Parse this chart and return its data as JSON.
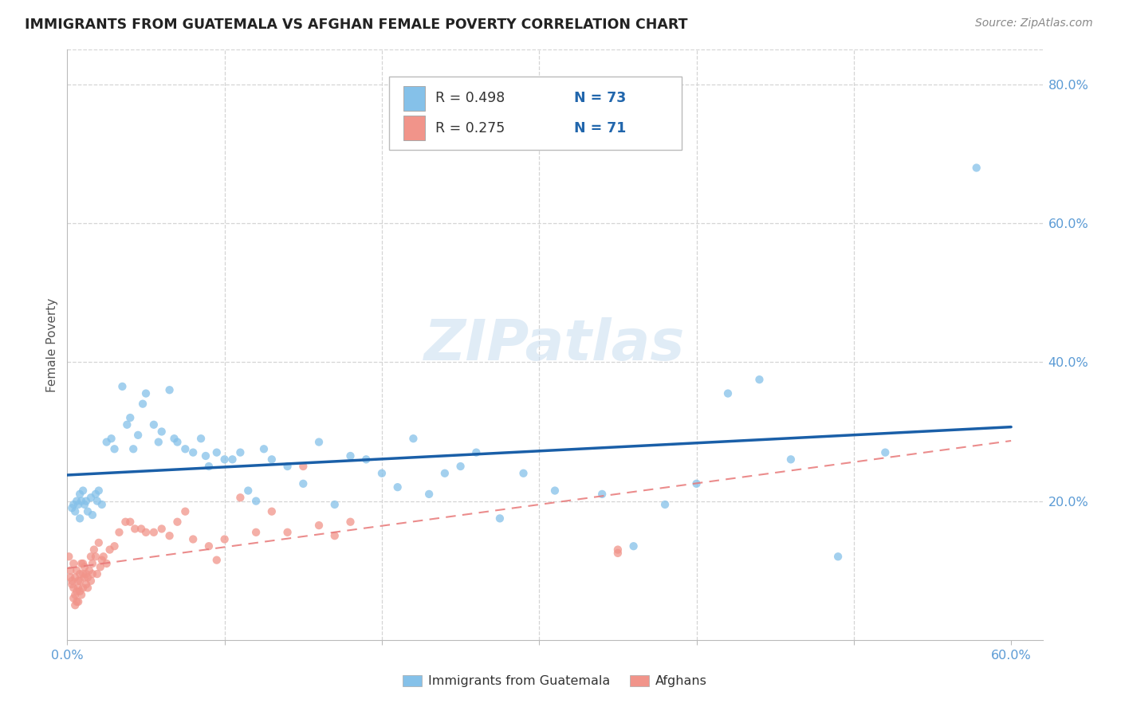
{
  "title": "IMMIGRANTS FROM GUATEMALA VS AFGHAN FEMALE POVERTY CORRELATION CHART",
  "source": "Source: ZipAtlas.com",
  "ylabel": "Female Poverty",
  "xlim": [
    0.0,
    0.62
  ],
  "ylim": [
    0.0,
    0.85
  ],
  "xtick_positions": [
    0.0,
    0.1,
    0.2,
    0.3,
    0.4,
    0.5,
    0.6
  ],
  "xticklabels": [
    "0.0%",
    "",
    "",
    "",
    "",
    "",
    "60.0%"
  ],
  "ytick_positions": [
    0.2,
    0.4,
    0.6,
    0.8
  ],
  "ytick_labels": [
    "20.0%",
    "40.0%",
    "60.0%",
    "80.0%"
  ],
  "guatemala_color": "#85c1e9",
  "afghan_color": "#f1948a",
  "guatemala_line_color": "#1a5fa8",
  "afghan_line_color": "#e87878",
  "watermark": "ZIPatlas",
  "legend_r1": "R = 0.498",
  "legend_n1": "N = 73",
  "legend_r2": "R = 0.275",
  "legend_n2": "N = 71",
  "grid_color": "#d5d5d5",
  "guatemala_scatter_x": [
    0.003,
    0.004,
    0.005,
    0.006,
    0.007,
    0.008,
    0.008,
    0.009,
    0.01,
    0.011,
    0.012,
    0.013,
    0.015,
    0.016,
    0.018,
    0.019,
    0.02,
    0.022,
    0.025,
    0.028,
    0.03,
    0.035,
    0.038,
    0.04,
    0.042,
    0.045,
    0.048,
    0.05,
    0.055,
    0.058,
    0.06,
    0.065,
    0.068,
    0.07,
    0.075,
    0.08,
    0.085,
    0.088,
    0.09,
    0.095,
    0.1,
    0.105,
    0.11,
    0.115,
    0.12,
    0.125,
    0.13,
    0.14,
    0.15,
    0.16,
    0.17,
    0.18,
    0.19,
    0.2,
    0.21,
    0.22,
    0.23,
    0.24,
    0.25,
    0.26,
    0.275,
    0.29,
    0.31,
    0.34,
    0.36,
    0.38,
    0.4,
    0.42,
    0.44,
    0.46,
    0.49,
    0.52,
    0.578
  ],
  "guatemala_scatter_y": [
    0.19,
    0.195,
    0.185,
    0.2,
    0.195,
    0.21,
    0.175,
    0.2,
    0.215,
    0.195,
    0.2,
    0.185,
    0.205,
    0.18,
    0.21,
    0.2,
    0.215,
    0.195,
    0.285,
    0.29,
    0.275,
    0.365,
    0.31,
    0.32,
    0.275,
    0.295,
    0.34,
    0.355,
    0.31,
    0.285,
    0.3,
    0.36,
    0.29,
    0.285,
    0.275,
    0.27,
    0.29,
    0.265,
    0.25,
    0.27,
    0.26,
    0.26,
    0.27,
    0.215,
    0.2,
    0.275,
    0.26,
    0.25,
    0.225,
    0.285,
    0.195,
    0.265,
    0.26,
    0.24,
    0.22,
    0.29,
    0.21,
    0.24,
    0.25,
    0.27,
    0.175,
    0.24,
    0.215,
    0.21,
    0.135,
    0.195,
    0.225,
    0.355,
    0.375,
    0.26,
    0.12,
    0.27,
    0.68
  ],
  "afghan_scatter_x": [
    0.001,
    0.002,
    0.002,
    0.003,
    0.003,
    0.004,
    0.004,
    0.004,
    0.005,
    0.005,
    0.005,
    0.006,
    0.006,
    0.006,
    0.007,
    0.007,
    0.007,
    0.008,
    0.008,
    0.008,
    0.009,
    0.009,
    0.01,
    0.01,
    0.01,
    0.011,
    0.011,
    0.012,
    0.012,
    0.013,
    0.013,
    0.014,
    0.015,
    0.015,
    0.016,
    0.016,
    0.017,
    0.018,
    0.019,
    0.02,
    0.021,
    0.022,
    0.023,
    0.025,
    0.027,
    0.03,
    0.033,
    0.037,
    0.04,
    0.043,
    0.047,
    0.05,
    0.055,
    0.06,
    0.065,
    0.07,
    0.075,
    0.08,
    0.09,
    0.095,
    0.1,
    0.11,
    0.12,
    0.13,
    0.14,
    0.15,
    0.16,
    0.17,
    0.18,
    0.35,
    0.35
  ],
  "afghan_scatter_y": [
    0.12,
    0.1,
    0.09,
    0.085,
    0.08,
    0.06,
    0.075,
    0.11,
    0.05,
    0.065,
    0.09,
    0.055,
    0.07,
    0.1,
    0.075,
    0.085,
    0.055,
    0.095,
    0.07,
    0.085,
    0.065,
    0.11,
    0.095,
    0.075,
    0.11,
    0.09,
    0.105,
    0.08,
    0.095,
    0.09,
    0.075,
    0.1,
    0.085,
    0.12,
    0.095,
    0.11,
    0.13,
    0.12,
    0.095,
    0.14,
    0.105,
    0.115,
    0.12,
    0.11,
    0.13,
    0.135,
    0.155,
    0.17,
    0.17,
    0.16,
    0.16,
    0.155,
    0.155,
    0.16,
    0.15,
    0.17,
    0.185,
    0.145,
    0.135,
    0.115,
    0.145,
    0.205,
    0.155,
    0.185,
    0.155,
    0.25,
    0.165,
    0.15,
    0.17,
    0.125,
    0.13
  ]
}
